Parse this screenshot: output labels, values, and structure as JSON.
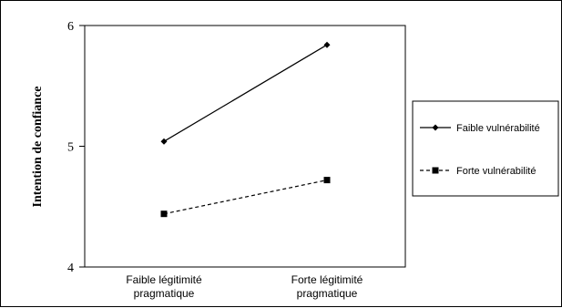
{
  "chart_data": {
    "type": "line",
    "title": "",
    "xlabel": "",
    "ylabel": "Intention de confiance",
    "categories": [
      "Faible légitimité pragmatique",
      "Forte légitimité pragmatique"
    ],
    "category_lines": [
      [
        "Faible légitimité",
        "pragmatique"
      ],
      [
        "Forte légitimité",
        "pragmatique"
      ]
    ],
    "ylim": [
      4,
      6
    ],
    "yticks": [
      4,
      5,
      6
    ],
    "grid": false,
    "legend_position": "right",
    "series": [
      {
        "name": "Faible vulnérabilité",
        "values": [
          5.04,
          5.84
        ],
        "marker": "diamond",
        "line": "solid",
        "color": "#000000"
      },
      {
        "name": "Forte vulnérabilité",
        "values": [
          4.44,
          4.72
        ],
        "marker": "square",
        "line": "dashed",
        "color": "#000000"
      }
    ]
  }
}
